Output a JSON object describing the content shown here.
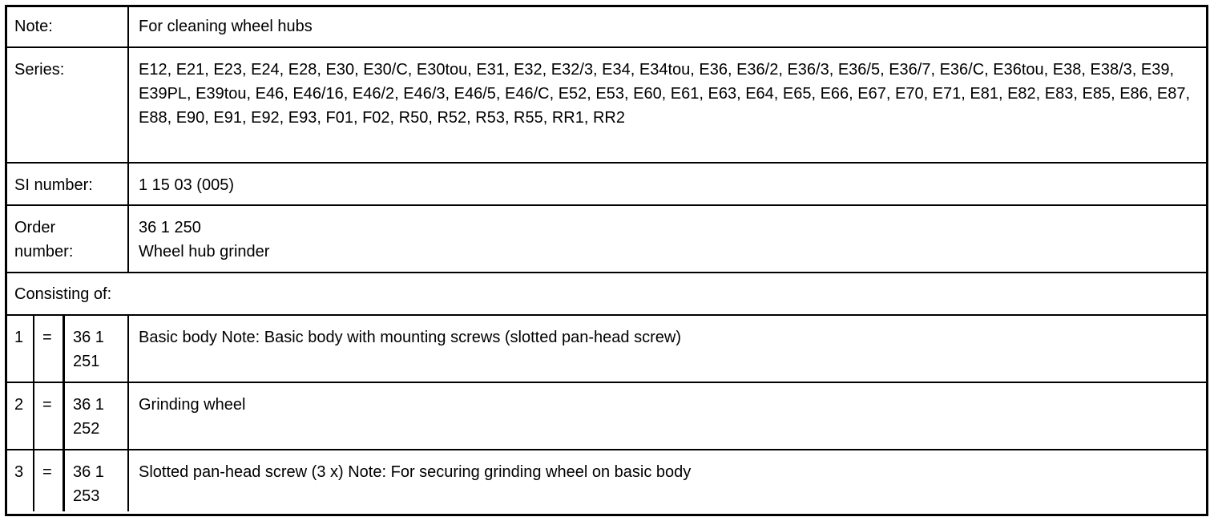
{
  "note": {
    "label": "Note:",
    "value": "For cleaning wheel hubs"
  },
  "series": {
    "label": "Series:",
    "value": "E12, E21, E23, E24, E28, E30, E30/C, E30tou, E31, E32, E32/3, E34, E34tou, E36, E36/2, E36/3, E36/5, E36/7, E36/C, E36tou, E38, E38/3, E39, E39PL, E39tou, E46, E46/16, E46/2, E46/3, E46/5, E46/C, E52, E53, E60, E61, E63, E64, E65, E66, E67, E70, E71, E81, E82, E83, E85, E86, E87, E88, E90, E91, E92, E93, F01, F02, R50, R52, R53, R55, RR1, RR2"
  },
  "si": {
    "label": "SI number:",
    "value": "1 15 03 (005)"
  },
  "order": {
    "label": "Order number:",
    "number": "36 1 250",
    "name": "Wheel hub grinder"
  },
  "consisting": {
    "label": "Consisting of:"
  },
  "parts": [
    {
      "index": "1",
      "eq": "=",
      "number": "36 1 251",
      "description": "Basic body Note: Basic body with mounting screws (slotted pan-head screw)"
    },
    {
      "index": "2",
      "eq": "=",
      "number": "36 1 252",
      "description": "Grinding wheel"
    },
    {
      "index": "3",
      "eq": "=",
      "number": "36 1 253",
      "description": "Slotted pan-head screw (3 x) Note: For securing grinding wheel on basic body"
    }
  ]
}
